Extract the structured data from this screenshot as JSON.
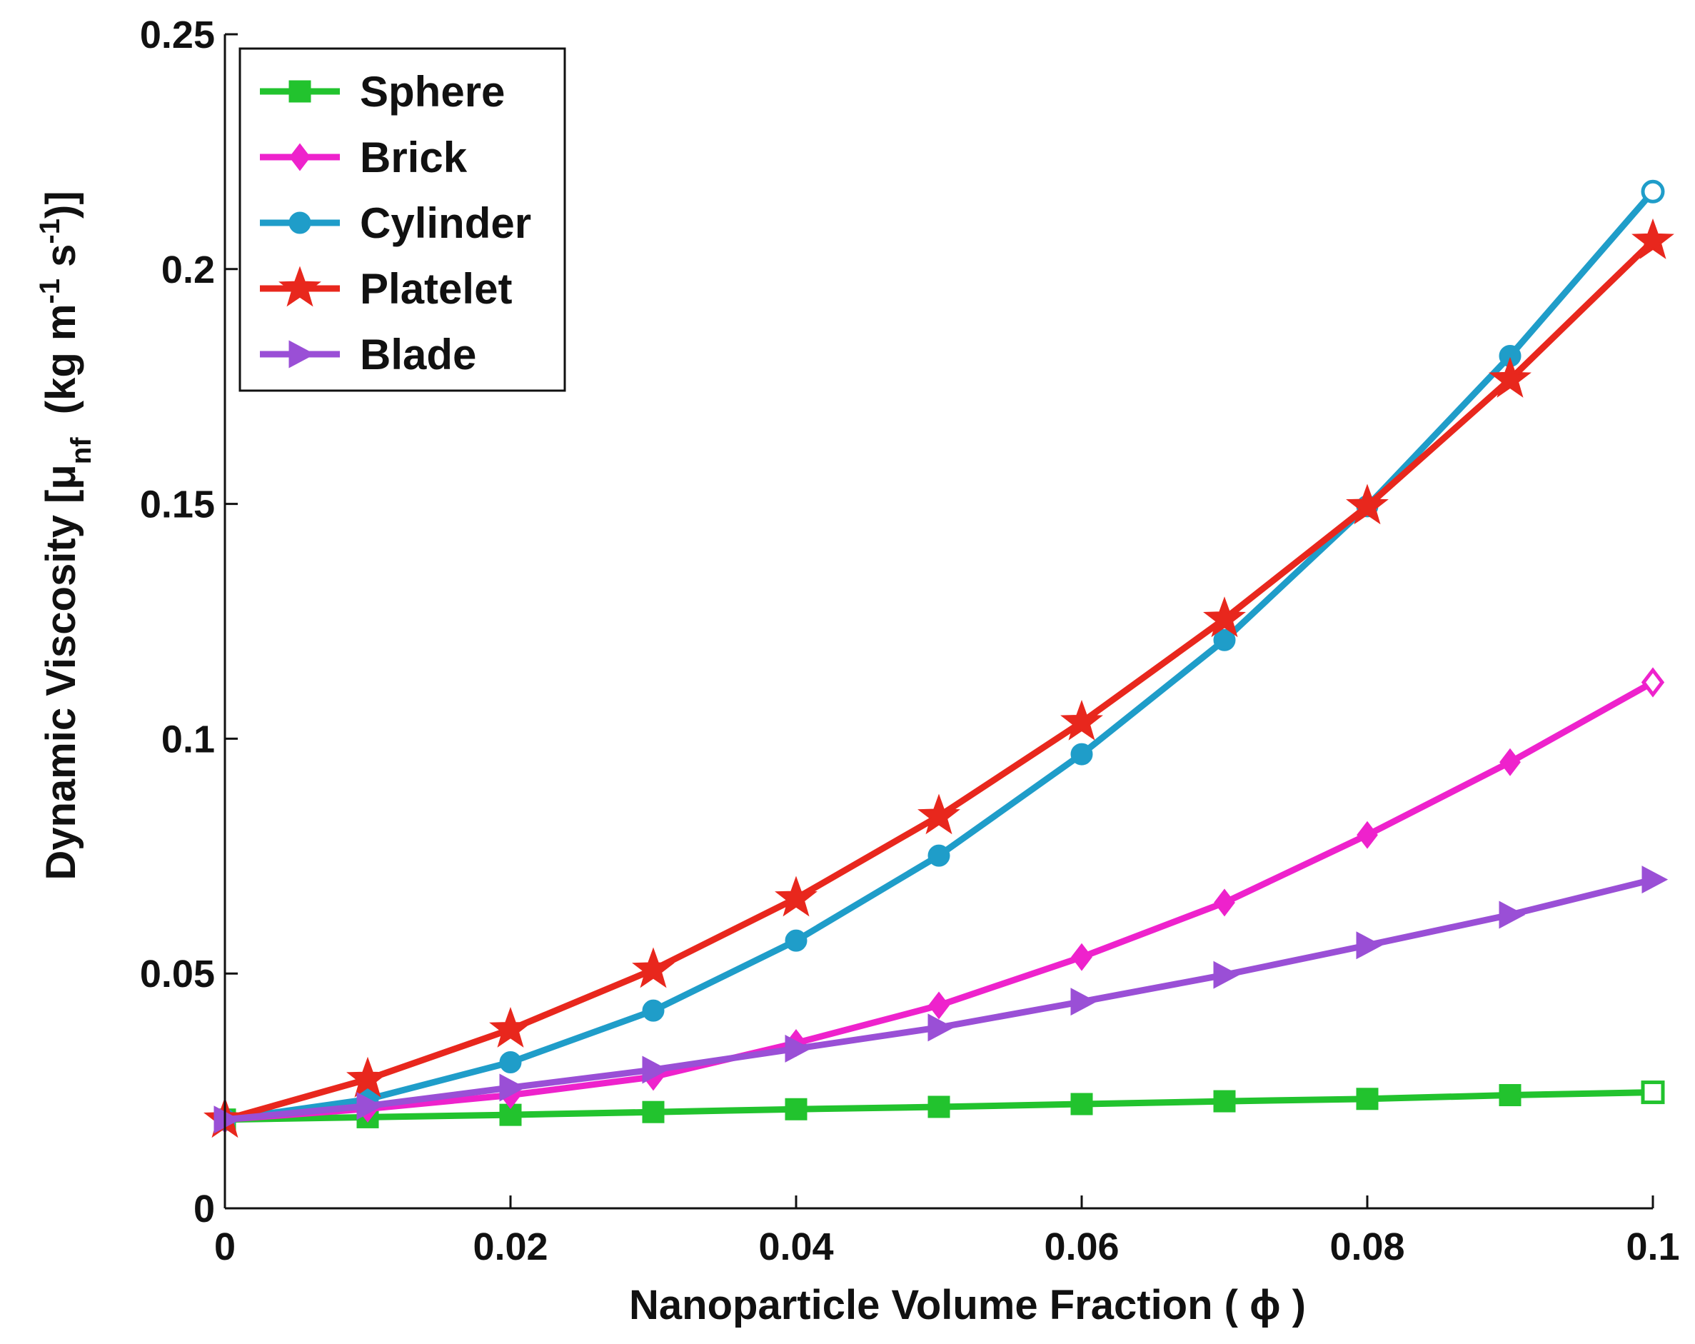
{
  "chart_data": {
    "type": "line",
    "xlabel": "Nanoparticle Volume Fraction ( ϕ )",
    "ylabel": {
      "prefix": "Dynamic Viscosity [μ",
      "sub": "nf",
      "middle": "  (kg m",
      "sup1": "-1",
      "middle2": " s",
      "sup2": "-1",
      "suffix": ")]"
    },
    "xlim": [
      0,
      0.1
    ],
    "ylim": [
      0,
      0.25
    ],
    "xticks": [
      0,
      0.02,
      0.04,
      0.06,
      0.08,
      0.1
    ],
    "xtick_labels": [
      "0",
      "0.02",
      "0.04",
      "0.06",
      "0.08",
      "0.1"
    ],
    "yticks": [
      0,
      0.05,
      0.1,
      0.15,
      0.2,
      0.25
    ],
    "ytick_labels": [
      "0",
      "0.05",
      "0.1",
      "0.15",
      "0.2",
      "0.25"
    ],
    "grid": false,
    "legend_position": "top-left",
    "x": [
      0,
      0.01,
      0.02,
      0.03,
      0.04,
      0.05,
      0.06,
      0.07,
      0.08,
      0.09,
      0.1
    ],
    "series": [
      {
        "name": "Sphere",
        "color": "#22c32e",
        "marker": "square",
        "values": [
          0.0189,
          0.0194,
          0.0199,
          0.0205,
          0.0211,
          0.0216,
          0.0222,
          0.0228,
          0.0233,
          0.0241,
          0.0247
        ]
      },
      {
        "name": "Brick",
        "color": "#ee22cc",
        "marker": "diamond",
        "values": [
          0.0189,
          0.0212,
          0.0241,
          0.028,
          0.0352,
          0.0432,
          0.0535,
          0.0651,
          0.0795,
          0.095,
          0.112
        ]
      },
      {
        "name": "Cylinder",
        "color": "#1f9dc9",
        "marker": "circle",
        "values": [
          0.0189,
          0.0232,
          0.0311,
          0.0421,
          0.057,
          0.0751,
          0.0967,
          0.121,
          0.1495,
          0.1815,
          0.2165
        ]
      },
      {
        "name": "Platelet",
        "color": "#e8271d",
        "marker": "star",
        "values": [
          0.0189,
          0.0275,
          0.0381,
          0.0508,
          0.066,
          0.0835,
          0.1035,
          0.1255,
          0.1495,
          0.1765,
          0.206
        ]
      },
      {
        "name": "Blade",
        "color": "#9a4fd6",
        "marker": "triangle-right",
        "values": [
          0.0189,
          0.0218,
          0.0257,
          0.0295,
          0.034,
          0.0385,
          0.044,
          0.0497,
          0.056,
          0.0625,
          0.07
        ]
      }
    ]
  }
}
